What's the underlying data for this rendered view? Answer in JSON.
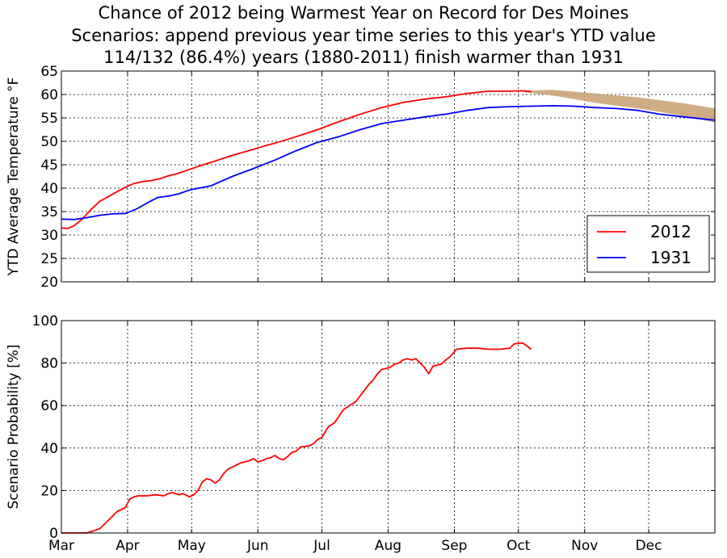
{
  "title_lines": [
    "Chance of 2012 being Warmest Year on Record for Des Moines",
    "Scenarios: append previous year time series to this year's YTD value",
    "114/132 (86.4%) years (1880-2011) finish warmer than 1931"
  ],
  "colors": {
    "series_2012": "#ff0000",
    "series_1931": "#0000ff",
    "scenario_band": "#c8a070",
    "grid": "#000000"
  },
  "chart_data": [
    {
      "type": "line",
      "ylabel": "YTD Average Temperature °F",
      "x_axis": "day of year",
      "xlim": [
        60,
        366
      ],
      "ylim": [
        20,
        65
      ],
      "yticks": [
        20,
        25,
        30,
        35,
        40,
        45,
        50,
        55,
        60,
        65
      ],
      "month_ticks": [
        {
          "day": 60,
          "label": "Mar"
        },
        {
          "day": 91,
          "label": "Apr"
        },
        {
          "day": 121,
          "label": "May"
        },
        {
          "day": 152,
          "label": "Jun"
        },
        {
          "day": 182,
          "label": "Jul"
        },
        {
          "day": 213,
          "label": "Aug"
        },
        {
          "day": 244,
          "label": "Sep"
        },
        {
          "day": 274,
          "label": "Oct"
        },
        {
          "day": 305,
          "label": "Nov"
        },
        {
          "day": 335,
          "label": "Dec"
        }
      ],
      "grid": true,
      "legend": "lower-right",
      "series": [
        {
          "name": "2012",
          "x": [
            60,
            63,
            66,
            70,
            74,
            78,
            82,
            86,
            90,
            94,
            98,
            102,
            106,
            110,
            115,
            120,
            125,
            130,
            140,
            150,
            155,
            160,
            170,
            180,
            190,
            200,
            210,
            220,
            230,
            240,
            250,
            260,
            270,
            276,
            280
          ],
          "y": [
            31.5,
            31.4,
            32.0,
            33.5,
            35.5,
            37.2,
            38.2,
            39.2,
            40.2,
            41.0,
            41.4,
            41.6,
            42.0,
            42.6,
            43.2,
            44.0,
            44.8,
            45.5,
            47.0,
            48.3,
            49.0,
            49.6,
            51.0,
            52.5,
            54.2,
            55.8,
            57.2,
            58.3,
            59.0,
            59.5,
            60.2,
            60.7,
            60.7,
            60.8,
            60.6
          ]
        },
        {
          "name": "1931",
          "x": [
            60,
            66,
            72,
            78,
            84,
            90,
            95,
            100,
            105,
            110,
            115,
            120,
            130,
            140,
            150,
            160,
            170,
            180,
            190,
            200,
            210,
            220,
            230,
            240,
            250,
            260,
            270,
            280,
            290,
            300,
            310,
            320,
            330,
            340,
            350,
            360,
            366
          ],
          "y": [
            33.4,
            33.3,
            33.7,
            34.2,
            34.5,
            34.6,
            35.5,
            36.8,
            38.0,
            38.3,
            38.8,
            39.6,
            40.5,
            42.5,
            44.2,
            46.0,
            48.0,
            49.8,
            51.0,
            52.5,
            53.8,
            54.5,
            55.2,
            55.8,
            56.6,
            57.2,
            57.4,
            57.5,
            57.6,
            57.5,
            57.2,
            57.0,
            56.6,
            55.8,
            55.3,
            54.8,
            54.5
          ]
        }
      ],
      "band": {
        "x": [
          276,
          290,
          300,
          310,
          320,
          330,
          340,
          350,
          360,
          366
        ],
        "upper": [
          60.8,
          61.0,
          60.6,
          60.2,
          59.8,
          59.4,
          58.8,
          58.2,
          57.5,
          57.0
        ],
        "lower": [
          60.5,
          59.8,
          59.0,
          58.2,
          57.6,
          57.0,
          56.3,
          55.5,
          54.6,
          54.0
        ]
      }
    },
    {
      "type": "line",
      "ylabel": "Scenario Probability [%]",
      "x_axis": "day of year",
      "xlim": [
        60,
        366
      ],
      "ylim": [
        0,
        100
      ],
      "yticks": [
        0,
        20,
        40,
        60,
        80,
        100
      ],
      "month_ticks": [
        {
          "day": 60,
          "label": "Mar"
        },
        {
          "day": 91,
          "label": "Apr"
        },
        {
          "day": 121,
          "label": "May"
        },
        {
          "day": 152,
          "label": "Jun"
        },
        {
          "day": 182,
          "label": "Jul"
        },
        {
          "day": 213,
          "label": "Aug"
        },
        {
          "day": 244,
          "label": "Sep"
        },
        {
          "day": 274,
          "label": "Oct"
        },
        {
          "day": 305,
          "label": "Nov"
        },
        {
          "day": 335,
          "label": "Dec"
        }
      ],
      "grid": true,
      "series": [
        {
          "name": "2012",
          "x": [
            60,
            72,
            75,
            78,
            80,
            83,
            86,
            88,
            90,
            92,
            94,
            96,
            100,
            104,
            108,
            110,
            112,
            115,
            117,
            120,
            122,
            124,
            126,
            128,
            130,
            132,
            134,
            136,
            138,
            140,
            144,
            148,
            150,
            152,
            154,
            156,
            158,
            160,
            162,
            164,
            166,
            168,
            170,
            172,
            176,
            178,
            180,
            182,
            185,
            188,
            190,
            192,
            195,
            198,
            201,
            204,
            206,
            208,
            210,
            212,
            214,
            216,
            218,
            220,
            222,
            224,
            226,
            228,
            230,
            232,
            234,
            238,
            240,
            242,
            245,
            250,
            255,
            260,
            265,
            270,
            272,
            276,
            280
          ],
          "y": [
            0,
            0,
            1,
            2,
            4,
            7,
            10,
            11,
            12,
            16,
            17,
            17.5,
            17.5,
            18,
            17.5,
            18.5,
            19,
            18,
            18.5,
            17,
            18,
            20,
            24,
            25.5,
            25,
            23.5,
            25,
            28,
            30,
            31,
            33,
            34,
            35,
            33.5,
            34,
            35,
            35.5,
            36.5,
            35,
            34.5,
            36,
            38,
            38.5,
            40.5,
            41,
            42,
            44,
            45,
            50,
            52,
            55,
            58,
            60,
            62,
            66,
            70,
            72,
            75,
            77,
            77.5,
            78,
            79.5,
            80,
            81.5,
            82,
            81.5,
            82,
            80,
            78,
            75,
            78.5,
            79.5,
            81.5,
            83,
            86.5,
            87,
            87,
            86.5,
            86.5,
            87,
            89,
            89.5,
            86.5
          ]
        }
      ]
    }
  ]
}
